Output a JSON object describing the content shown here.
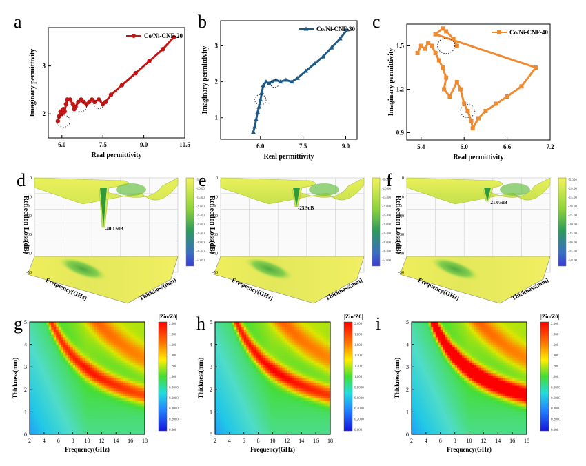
{
  "colors": {
    "cnf20": "#c41414",
    "cnf30": "#1f5a86",
    "cnf40": "#f08a30",
    "surface_high": "#f3f25a",
    "surface_low": "#3a4bd8"
  },
  "panels": [
    {
      "letter": "a"
    },
    {
      "letter": "b"
    },
    {
      "letter": "c"
    },
    {
      "letter": "d"
    },
    {
      "letter": "e"
    },
    {
      "letter": "f"
    },
    {
      "letter": "g"
    },
    {
      "letter": "h"
    },
    {
      "letter": "i"
    }
  ],
  "chart_data": [
    {
      "type": "scatter",
      "panel": "a",
      "xlabel": "Real permittivity",
      "ylabel": "Imaginary permittivity",
      "xlim": [
        5.5,
        10.5
      ],
      "ylim": [
        1.5,
        3.8
      ],
      "xticks": [
        "6.0",
        "7.5",
        "9.0",
        "10.5"
      ],
      "yticks": [
        "2",
        "3"
      ],
      "legend": "top-right",
      "series": [
        {
          "name": "Co/Ni-CNF-20",
          "color": "#c41414",
          "points": [
            [
              5.85,
              1.85
            ],
            [
              5.9,
              1.95
            ],
            [
              5.95,
              2.05
            ],
            [
              6.0,
              2.0
            ],
            [
              6.05,
              2.1
            ],
            [
              6.1,
              2.05
            ],
            [
              6.15,
              2.2
            ],
            [
              6.2,
              2.3
            ],
            [
              6.3,
              2.3
            ],
            [
              6.4,
              2.2
            ],
            [
              6.45,
              2.1
            ],
            [
              6.5,
              2.15
            ],
            [
              6.6,
              2.25
            ],
            [
              6.7,
              2.3
            ],
            [
              6.8,
              2.25
            ],
            [
              6.9,
              2.2
            ],
            [
              7.0,
              2.25
            ],
            [
              7.1,
              2.3
            ],
            [
              7.2,
              2.25
            ],
            [
              7.35,
              2.3
            ],
            [
              7.5,
              2.2
            ],
            [
              7.6,
              2.25
            ],
            [
              7.8,
              2.4
            ],
            [
              8.2,
              2.6
            ],
            [
              8.7,
              2.85
            ],
            [
              9.2,
              3.1
            ],
            [
              9.7,
              3.35
            ],
            [
              10.1,
              3.6
            ]
          ]
        }
      ]
    },
    {
      "type": "scatter",
      "panel": "b",
      "xlabel": "Real permittivity",
      "ylabel": "Imaginary permittivity",
      "xlim": [
        4.6,
        9.4
      ],
      "ylim": [
        0.4,
        3.7
      ],
      "xticks": [
        "6.0",
        "7.5",
        "9.0"
      ],
      "yticks": [
        "1",
        "2",
        "3"
      ],
      "legend": "top-right",
      "series": [
        {
          "name": "Co/Ni-CNF-30",
          "color": "#1f5a86",
          "points": [
            [
              5.75,
              0.6
            ],
            [
              5.8,
              0.75
            ],
            [
              5.85,
              0.95
            ],
            [
              5.9,
              1.15
            ],
            [
              5.95,
              1.3
            ],
            [
              6.0,
              1.5
            ],
            [
              6.05,
              1.7
            ],
            [
              6.1,
              1.9
            ],
            [
              6.2,
              2.0
            ],
            [
              6.3,
              1.95
            ],
            [
              6.4,
              2.0
            ],
            [
              6.55,
              2.05
            ],
            [
              6.7,
              2.0
            ],
            [
              6.9,
              2.05
            ],
            [
              7.1,
              2.0
            ],
            [
              7.3,
              2.1
            ],
            [
              7.6,
              2.3
            ],
            [
              7.9,
              2.5
            ],
            [
              8.2,
              2.7
            ],
            [
              8.5,
              2.95
            ],
            [
              8.8,
              3.2
            ],
            [
              9.05,
              3.45
            ]
          ]
        }
      ]
    },
    {
      "type": "scatter",
      "panel": "c",
      "xlabel": "Real permittivity",
      "ylabel": "Imaginary permittivity",
      "xlim": [
        5.2,
        7.2
      ],
      "ylim": [
        0.85,
        1.65
      ],
      "xticks": [
        "5.4",
        "6.0",
        "6.6",
        "7.2"
      ],
      "yticks": [
        "0.9",
        "1.2",
        "1.5"
      ],
      "legend": "top-right",
      "series": [
        {
          "name": "Co/Ni-CNF-40",
          "color": "#f08a30",
          "points": [
            [
              5.35,
              1.45
            ],
            [
              5.4,
              1.5
            ],
            [
              5.45,
              1.48
            ],
            [
              5.5,
              1.52
            ],
            [
              5.55,
              1.5
            ],
            [
              5.6,
              1.45
            ],
            [
              5.65,
              1.4
            ],
            [
              5.7,
              1.35
            ],
            [
              5.75,
              1.28
            ],
            [
              5.72,
              1.2
            ],
            [
              5.8,
              1.15
            ],
            [
              5.9,
              1.25
            ],
            [
              5.95,
              1.2
            ],
            [
              6.0,
              1.1
            ],
            [
              6.05,
              1.05
            ],
            [
              6.1,
              0.98
            ],
            [
              6.12,
              0.93
            ],
            [
              6.2,
              1.0
            ],
            [
              6.3,
              1.05
            ],
            [
              6.45,
              1.1
            ],
            [
              6.6,
              1.15
            ],
            [
              6.8,
              1.22
            ],
            [
              7.0,
              1.35
            ],
            [
              5.6,
              1.58
            ],
            [
              5.7,
              1.62
            ],
            [
              5.75,
              1.6
            ],
            [
              5.85,
              1.55
            ],
            [
              5.9,
              1.5
            ]
          ]
        }
      ]
    },
    {
      "type": "heatmap",
      "panel": "d",
      "ylabel": "Reflection Loss(dB)",
      "xlabel": "Frequency(GHz)",
      "zlabel": "Thickness(mm)",
      "zticks": [
        "-50",
        "-40",
        "-30",
        "-20",
        "-10",
        "0"
      ],
      "colorbar": [
        "-5.000",
        "-10.00",
        "-15.00",
        "-20.00",
        "-25.00",
        "-30.00",
        "-35.00",
        "-40.00",
        "-45.00",
        "-50.00"
      ],
      "annotation": "-40.13dB",
      "min_rl": -40.13
    },
    {
      "type": "heatmap",
      "panel": "e",
      "ylabel": "Reflection Loss(dB)",
      "xlabel": "Frequency(GHz)",
      "zlabel": "Thickness(mm)",
      "zticks": [
        "-50",
        "-40",
        "-30",
        "-20",
        "-10",
        "0"
      ],
      "colorbar": [
        "-5.000",
        "-10.00",
        "-15.00",
        "-20.00",
        "-25.00",
        "-30.00",
        "-35.00",
        "-40.00",
        "-45.00",
        "-50.00"
      ],
      "annotation": "-25.9dB",
      "min_rl": -25.9
    },
    {
      "type": "heatmap",
      "panel": "f",
      "ylabel": "Reflection Loss(dB)",
      "xlabel": "Frequency(GHz)",
      "zlabel": "Thickness(mm)",
      "zticks": [
        "-50",
        "-40",
        "-30",
        "-20",
        "-10",
        "0"
      ],
      "colorbar": [
        "-5.000",
        "-10.00",
        "-15.00",
        "-20.00",
        "-25.00",
        "-30.00",
        "-35.00",
        "-40.00",
        "-45.00",
        "-50.00"
      ],
      "annotation": "-21.07dB",
      "min_rl": -21.07
    },
    {
      "type": "heatmap",
      "panel": "g",
      "xlabel": "Frequency(GHz)",
      "ylabel": "Thickness(mm)",
      "colorbar_title": "|Zin/Z0|",
      "xlim": [
        2,
        18
      ],
      "ylim": [
        0,
        5
      ],
      "xticks": [
        "2",
        "4",
        "6",
        "8",
        "10",
        "12",
        "14",
        "16",
        "18"
      ],
      "yticks": [
        "0",
        "1",
        "2",
        "3",
        "4",
        "5"
      ],
      "colorbar": [
        "2.000",
        "1.800",
        "1.600",
        "1.400",
        "1.200",
        "1.000",
        "0.8000",
        "0.6000",
        "0.4000",
        "0.2000",
        "0.000"
      ],
      "band_strength": 0.55
    },
    {
      "type": "heatmap",
      "panel": "h",
      "xlabel": "Frequency(GHz)",
      "ylabel": "Thickness(mm)",
      "colorbar_title": "|Zin/Z0|",
      "xlim": [
        2,
        18
      ],
      "ylim": [
        0,
        5
      ],
      "xticks": [
        "2",
        "4",
        "6",
        "8",
        "10",
        "12",
        "14",
        "16",
        "18"
      ],
      "yticks": [
        "0",
        "1",
        "2",
        "3",
        "4",
        "5"
      ],
      "colorbar": [
        "2.000",
        "1.800",
        "1.600",
        "1.400",
        "1.200",
        "1.000",
        "0.8000",
        "0.6000",
        "0.4000",
        "0.2000",
        "0.000"
      ],
      "band_strength": 0.6
    },
    {
      "type": "heatmap",
      "panel": "i",
      "xlabel": "Frequency(GHz)",
      "ylabel": "Thickness(mm)",
      "colorbar_title": "|Zin/Z0|",
      "xlim": [
        2,
        18
      ],
      "ylim": [
        0,
        5
      ],
      "xticks": [
        "2",
        "4",
        "6",
        "8",
        "10",
        "12",
        "14",
        "16",
        "18"
      ],
      "yticks": [
        "0",
        "1",
        "2",
        "3",
        "4",
        "5"
      ],
      "colorbar": [
        "2.000",
        "1.800",
        "1.600",
        "1.400",
        "1.200",
        "1.000",
        "0.8000",
        "0.6000",
        "0.4000",
        "0.2000",
        "0.000"
      ],
      "band_strength": 1.0
    }
  ]
}
